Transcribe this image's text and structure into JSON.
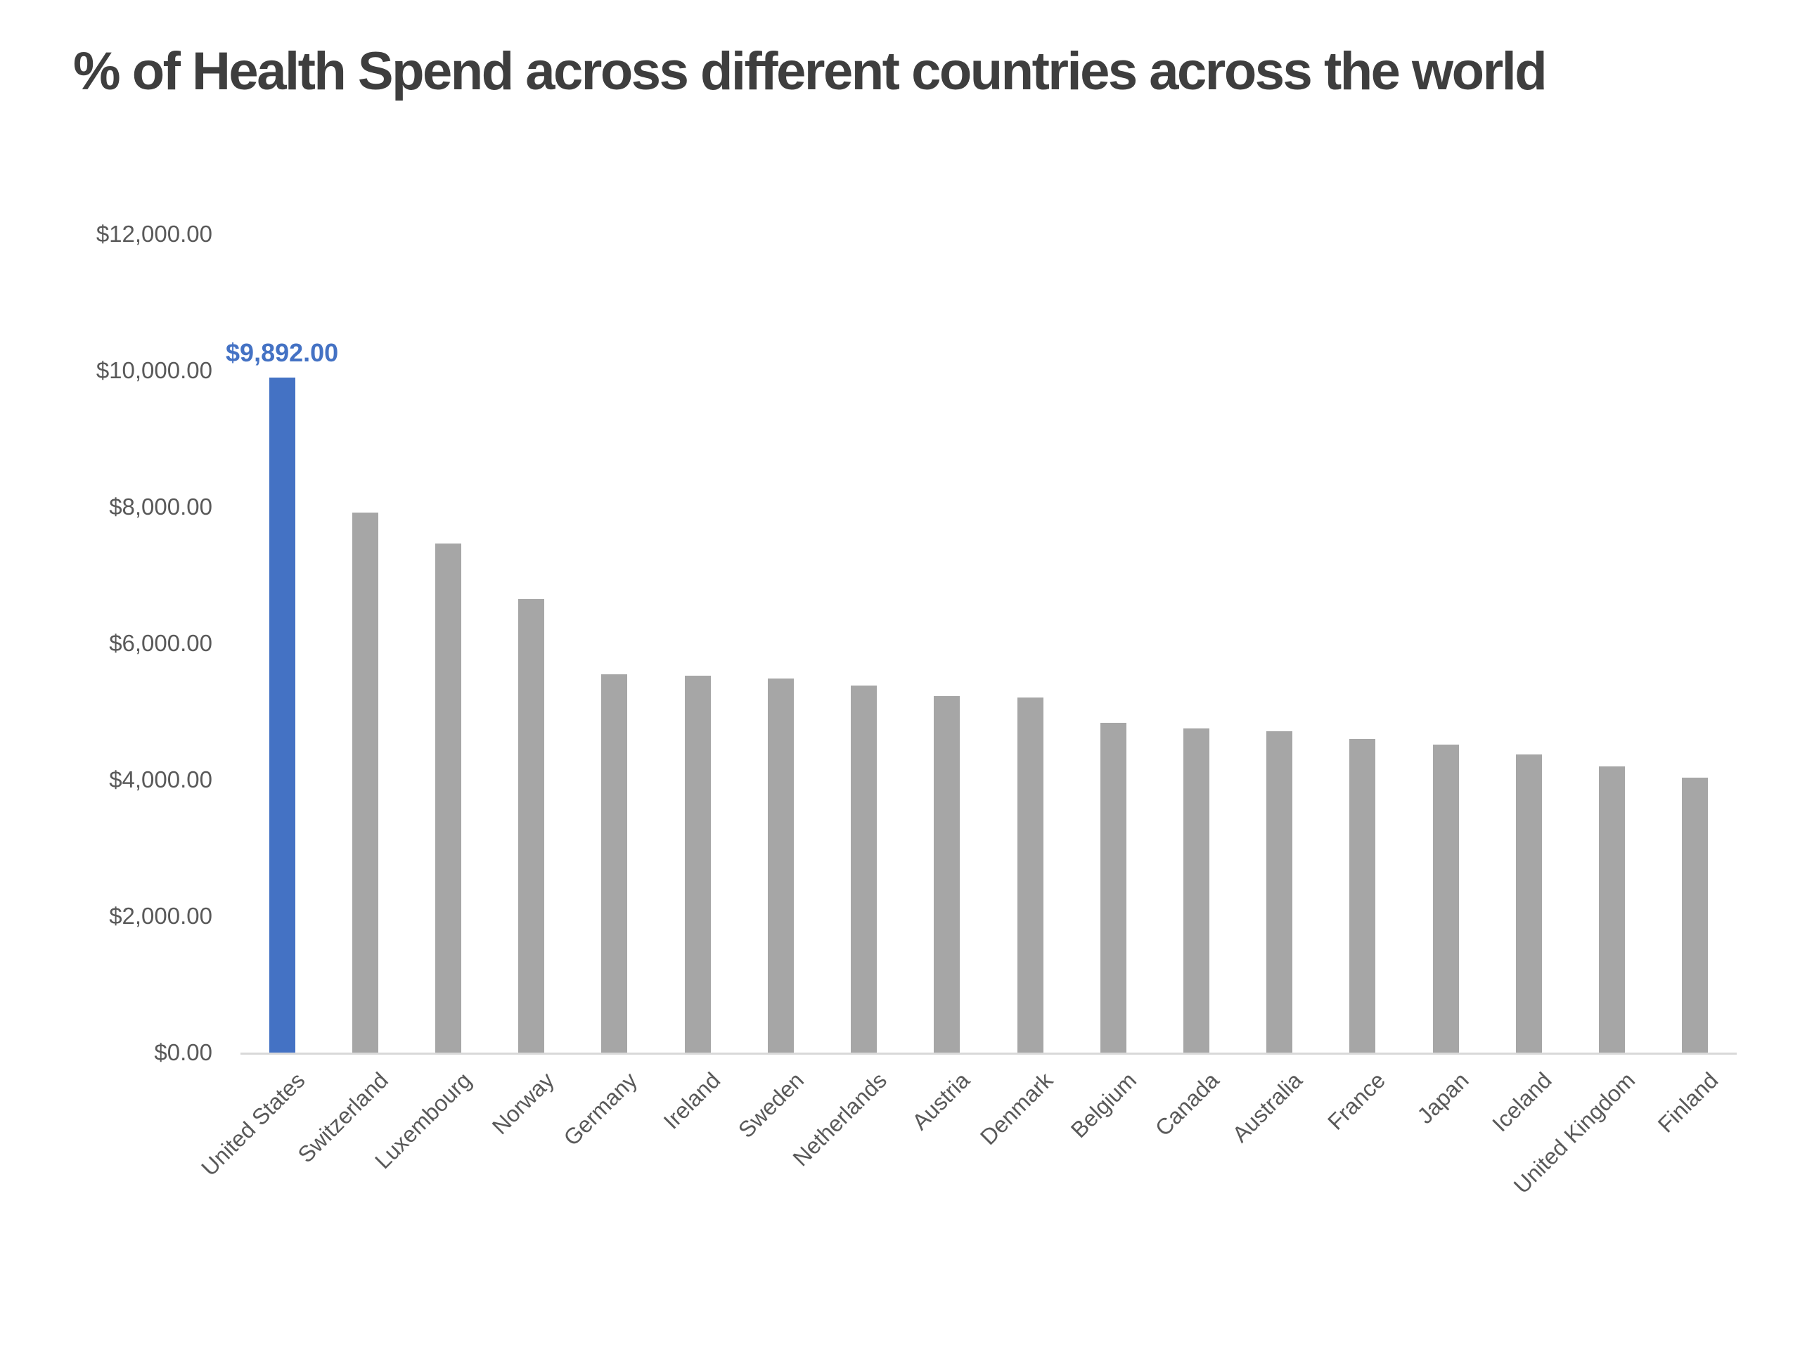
{
  "header": {
    "title": "% of Health Spend across different countries across the world"
  },
  "colors": {
    "background": "#FFFFFF",
    "highlight_bar": "#4472C4",
    "default_bar": "#A6A6A6",
    "title_text": "#3E3E3E",
    "axis_text": "#595959",
    "axis_line": "#D9D9D9",
    "data_label_text": "#4472C4"
  },
  "chart_data": {
    "type": "bar",
    "title": "% of Health Spend across different countries across the world",
    "categories": [
      "United States",
      "Switzerland",
      "Luxembourg",
      "Norway",
      "Germany",
      "Ireland",
      "Sweden",
      "Netherlands",
      "Austria",
      "Denmark",
      "Belgium",
      "Canada",
      "Australia",
      "France",
      "Japan",
      "Iceland",
      "United Kingdom",
      "Finland"
    ],
    "values": [
      9892,
      7919,
      7463,
      6647,
      5551,
      5528,
      5488,
      5385,
      5227,
      5205,
      4840,
      4753,
      4708,
      4600,
      4519,
      4376,
      4192,
      4033
    ],
    "highlight_index": 0,
    "data_labels": [
      {
        "index": 0,
        "text": "$9,892.00"
      }
    ],
    "xlabel": "",
    "ylabel": "",
    "ylim": [
      0,
      12000
    ],
    "y_tick_interval": 2000,
    "y_tick_labels": [
      "$12,000.00",
      "$10,000.00",
      "$8,000.00",
      "$6,000.00",
      "$4,000.00",
      "$2,000.00",
      "$0.00"
    ],
    "x_label_rotation_deg": 45,
    "grid": false,
    "legend": "none"
  }
}
